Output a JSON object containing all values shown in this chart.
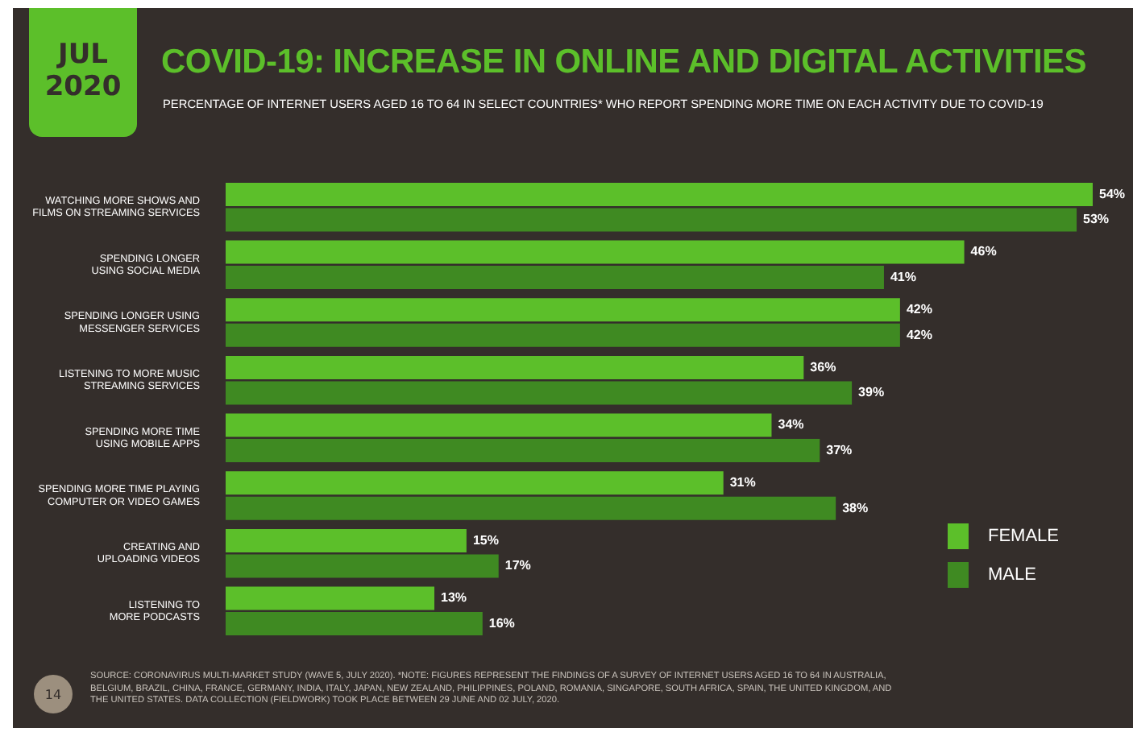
{
  "chart_data": {
    "type": "bar",
    "orientation": "horizontal",
    "title": "COVID-19: INCREASE IN ONLINE AND DIGITAL ACTIVITIES",
    "subtitle": "PERCENTAGE OF INTERNET USERS AGED 16 TO 64 IN SELECT COUNTRIES* WHO REPORT SPENDING MORE TIME ON EACH ACTIVITY DUE TO COVID-19",
    "categories": [
      "WATCHING MORE SHOWS AND FILMS ON STREAMING SERVICES",
      "SPENDING LONGER USING SOCIAL MEDIA",
      "SPENDING LONGER USING MESSENGER SERVICES",
      "LISTENING TO MORE MUSIC STREAMING SERVICES",
      "SPENDING MORE TIME USING MOBILE APPS",
      "SPENDING MORE TIME PLAYING COMPUTER OR VIDEO GAMES",
      "CREATING AND UPLOADING VIDEOS",
      "LISTENING TO MORE PODCASTS"
    ],
    "series": [
      {
        "name": "FEMALE",
        "color": "#5cbf2a",
        "values": [
          54,
          46,
          42,
          36,
          34,
          31,
          15,
          13
        ],
        "value_labels": [
          "54%",
          "46%",
          "42%",
          "36%",
          "34%",
          "31%",
          "15%",
          "13%"
        ]
      },
      {
        "name": "MALE",
        "color": "#3f8a22",
        "values": [
          53,
          41,
          42,
          39,
          37,
          38,
          17,
          16
        ],
        "value_labels": [
          "53%",
          "41%",
          "42%",
          "39%",
          "37%",
          "38%",
          "17%",
          "16%"
        ]
      }
    ],
    "legend": "bottom right",
    "tick_labels": "y",
    "annotations": [
      "JUL 2020",
      "SOURCE: CORONAVIRUS MULTI-MARKET STUDY (WAVE 5, JULY 2020). *NOTE: FIGURES REPRESENT THE FINDINGS OF A SURVEY OF INTERNET USERS AGED 16 TO 64 IN AUSTRALIA, BELGIUM, BRAZIL, CHINA, FRANCE, GERMANY, INDIA, ITALY, JAPAN, NEW ZEALAND, PHILIPPINES, POLAND, ROMANIA, SINGAPORE, SOUTH AFRICA, SPAIN, THE UNITED KINGDOM, AND THE UNITED STATES. DATA COLLECTION (FIELDWORK) TOOK PLACE BETWEEN 29 JUNE AND 02 JULY, 2020.",
      "14"
    ]
  }
}
